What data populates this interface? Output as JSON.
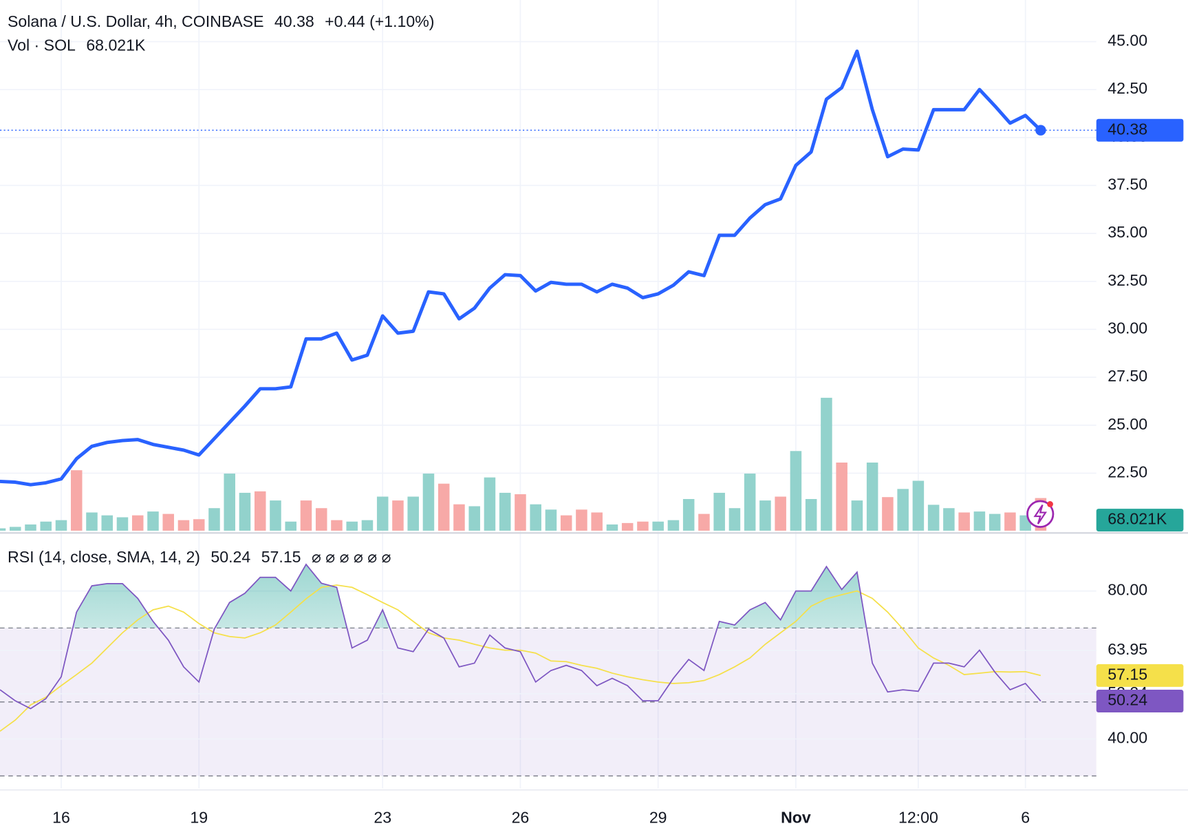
{
  "chart_data": [
    {
      "type": "line",
      "title": "Solana / U.S. Dollar, 4h, COINBASE",
      "change": "+0.44 (+1.10%)",
      "color": "#2962ff",
      "categories": [
        null,
        null,
        null,
        null,
        "16",
        null,
        null,
        null,
        null,
        null,
        null,
        null,
        null,
        "19",
        null,
        null,
        null,
        null,
        null,
        null,
        null,
        null,
        null,
        null,
        null,
        "23",
        null,
        null,
        null,
        null,
        null,
        null,
        null,
        null,
        "26",
        null,
        null,
        null,
        null,
        null,
        null,
        null,
        null,
        "29",
        null,
        null,
        null,
        null,
        null,
        null,
        null,
        null,
        "Nov",
        null,
        null,
        null,
        null,
        null,
        null,
        null,
        "12:00",
        null,
        null,
        null,
        null,
        null,
        null,
        "6",
        null
      ],
      "values": [
        22.07,
        22.03,
        21.9,
        22.0,
        22.2,
        23.25,
        23.9,
        24.1,
        24.2,
        24.25,
        24.0,
        23.85,
        23.7,
        23.45,
        24.3,
        25.15,
        26.0,
        26.9,
        26.9,
        27.0,
        29.5,
        29.5,
        29.8,
        28.4,
        28.65,
        30.7,
        29.8,
        29.9,
        31.95,
        31.85,
        30.55,
        31.1,
        32.15,
        32.85,
        32.8,
        32.0,
        32.45,
        32.35,
        32.35,
        31.95,
        32.35,
        32.15,
        31.65,
        31.85,
        32.3,
        33.0,
        32.8,
        34.9,
        34.9,
        35.8,
        36.5,
        36.8,
        38.55,
        39.25,
        42.0,
        42.6,
        44.5,
        41.45,
        39.0,
        39.4,
        39.35,
        41.45,
        41.45,
        41.45,
        42.5,
        41.65,
        40.75,
        41.15,
        40.38
      ],
      "ylim": [
        19.5,
        47.17
      ],
      "yticks": [
        {
          "value": 45,
          "label": "45.00"
        },
        {
          "value": 42.5,
          "label": "42.50"
        },
        {
          "value": 40,
          "label": "40.00"
        },
        {
          "value": 37.5,
          "label": "37.50"
        },
        {
          "value": 35,
          "label": "35.00"
        },
        {
          "value": 32.5,
          "label": "32.50"
        },
        {
          "value": 30,
          "label": "30.00"
        },
        {
          "value": 27.5,
          "label": "27.50"
        },
        {
          "value": 25,
          "label": "25.00"
        },
        {
          "value": 22.5,
          "label": "22.50"
        }
      ],
      "grid": true
    },
    {
      "type": "bar",
      "title": "Vol · SOL",
      "color": "#26a69a",
      "values": [
        5,
        8,
        13,
        19,
        22,
        126,
        38,
        32,
        28,
        32,
        40,
        35,
        22,
        24,
        47,
        119,
        79,
        82,
        63,
        19,
        63,
        47,
        22,
        19,
        22,
        71,
        63,
        71,
        119,
        98,
        55,
        51,
        111,
        79,
        76,
        55,
        44,
        32,
        44,
        38,
        13,
        16,
        19,
        19,
        22,
        66,
        35,
        79,
        47,
        119,
        63,
        71,
        166,
        66,
        277,
        142,
        63,
        142,
        70,
        87,
        104,
        54,
        47,
        38,
        40,
        35,
        38,
        32,
        68.021
      ],
      "value_labels": [
        null,
        null,
        null,
        null,
        null,
        null,
        null,
        null,
        null,
        null,
        null,
        null,
        null,
        null,
        null,
        null,
        null,
        null,
        null,
        null,
        null,
        null,
        null,
        null,
        null,
        null,
        null,
        null,
        null,
        null,
        null,
        null,
        null,
        null,
        null,
        null,
        null,
        null,
        null,
        null,
        null,
        null,
        null,
        null,
        null,
        null,
        null,
        null,
        null,
        null,
        null,
        null,
        null,
        null,
        null,
        null,
        null,
        null,
        null,
        null,
        null,
        null,
        null,
        null,
        null,
        null,
        null,
        null,
        "68.021K"
      ],
      "colors": [
        "#92d2cc",
        "#92d2cc",
        "#92d2cc",
        "#92d2cc",
        "#92d2cc",
        "#f7a9a7",
        "#92d2cc",
        "#92d2cc",
        "#92d2cc",
        "#f7a9a7",
        "#92d2cc",
        "#f7a9a7",
        "#f7a9a7",
        "#f7a9a7",
        "#92d2cc",
        "#92d2cc",
        "#92d2cc",
        "#f7a9a7",
        "#92d2cc",
        "#92d2cc",
        "#f7a9a7",
        "#f7a9a7",
        "#f7a9a7",
        "#92d2cc",
        "#92d2cc",
        "#92d2cc",
        "#f7a9a7",
        "#92d2cc",
        "#92d2cc",
        "#f7a9a7",
        "#f7a9a7",
        "#92d2cc",
        "#92d2cc",
        "#92d2cc",
        "#f7a9a7",
        "#92d2cc",
        "#92d2cc",
        "#f7a9a7",
        "#f7a9a7",
        "#f7a9a7",
        "#92d2cc",
        "#f7a9a7",
        "#f7a9a7",
        "#92d2cc",
        "#92d2cc",
        "#92d2cc",
        "#f7a9a7",
        "#92d2cc",
        "#92d2cc",
        "#92d2cc",
        "#92d2cc",
        "#f7a9a7",
        "#92d2cc",
        "#92d2cc",
        "#92d2cc",
        "#f7a9a7",
        "#92d2cc",
        "#92d2cc",
        "#f7a9a7",
        "#92d2cc",
        "#92d2cc",
        "#92d2cc",
        "#92d2cc",
        "#f7a9a7",
        "#92d2cc",
        "#92d2cc",
        "#f7a9a7",
        "#92d2cc",
        "#f7a9a7"
      ],
      "ylim": [
        0,
        1000
      ]
    },
    {
      "type": "line",
      "title": "RSI (14, close, SMA, 14, 2)",
      "symbols": "⌀ ⌀ ⌀ ⌀ ⌀ ⌀",
      "series": [
        {
          "color": "#7e57c2",
          "values": [
            53.3,
            50.3,
            48.2,
            50.9,
            56.8,
            74.3,
            81.4,
            82.0,
            82.0,
            78.0,
            71.8,
            66.7,
            59.5,
            55.4,
            69.7,
            76.9,
            79.4,
            83.7,
            83.7,
            80.0,
            87.2,
            82.1,
            81.0,
            64.6,
            66.7,
            74.9,
            64.6,
            63.6,
            69.7,
            67.3,
            59.5,
            60.5,
            68.1,
            64.6,
            63.6,
            55.4,
            58.5,
            59.9,
            58.5,
            54.4,
            56.4,
            54.4,
            50.3,
            50.3,
            56.4,
            61.5,
            58.5,
            71.8,
            70.8,
            74.9,
            76.9,
            72.2,
            80.0,
            80.0,
            86.6,
            80.4,
            85.1,
            60.5,
            52.7,
            53.3,
            52.9,
            60.5,
            60.5,
            59.5,
            64.0,
            58.1,
            53.3,
            55.0,
            50.24
          ]
        },
        {
          "color": "#f5e04a",
          "values": [
            42.1,
            45.1,
            49.2,
            51.3,
            54.4,
            57.4,
            60.5,
            64.6,
            68.7,
            72.2,
            74.9,
            75.9,
            74.3,
            71.2,
            68.7,
            67.7,
            67.3,
            68.7,
            70.8,
            74.3,
            77.9,
            81.0,
            81.6,
            81.0,
            79.0,
            76.9,
            74.9,
            71.8,
            68.7,
            67.3,
            66.7,
            65.6,
            64.6,
            64.0,
            64.0,
            63.2,
            61.1,
            60.9,
            59.9,
            59.1,
            57.8,
            56.8,
            56.0,
            55.4,
            55.0,
            55.2,
            55.8,
            57.4,
            59.5,
            61.9,
            65.6,
            68.7,
            71.8,
            75.9,
            77.9,
            79.0,
            80.0,
            78.0,
            74.3,
            69.7,
            64.6,
            61.9,
            59.9,
            57.4,
            57.8,
            58.2,
            58.1,
            58.2,
            57.15
          ]
        }
      ],
      "levels": [
        70,
        50,
        30
      ],
      "ylim": [
        26,
        92
      ],
      "yticks": [
        {
          "value": 80,
          "label": "80.00"
        },
        63.95,
        52.24,
        {
          "value": 40,
          "label": "40.00"
        }
      ],
      "grid": true
    }
  ]
}
